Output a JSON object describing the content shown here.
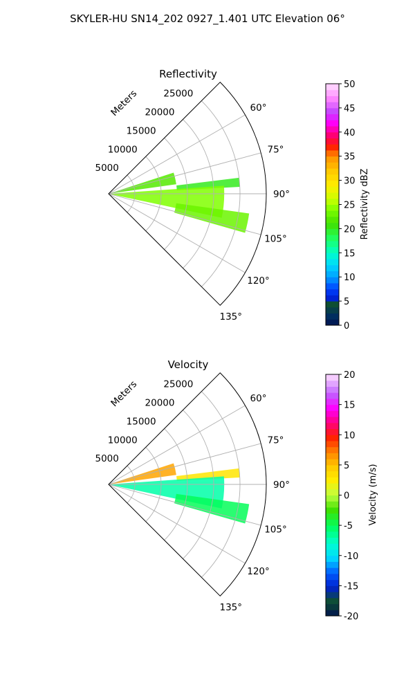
{
  "suptitle": "SKYLER-HU  SN14_202  0927_1.401 UTC Elevation 06°",
  "chart_data": [
    {
      "type": "heatmap",
      "projection": "polar-sector",
      "title": "Reflectivity",
      "r_label": "Meters",
      "theta_range_deg": [
        45,
        135
      ],
      "theta_ticks": [
        "60°",
        "75°",
        "90°",
        "105°",
        "120°",
        "135°"
      ],
      "r_range": [
        0,
        30000
      ],
      "r_ticks": [
        "5000",
        "10000",
        "15000",
        "20000",
        "25000"
      ],
      "grid": true,
      "colorbar": {
        "label": "Reflectivity dBZ",
        "range": [
          0,
          50
        ],
        "ticks": [
          "0",
          "5",
          "10",
          "15",
          "20",
          "25",
          "30",
          "35",
          "40",
          "45",
          "50"
        ]
      },
      "echo_bands": [
        {
          "theta_from": 72,
          "theta_to": 82,
          "r_from": 0,
          "r_to": 13000,
          "value": 22
        },
        {
          "theta_from": 83,
          "theta_to": 87,
          "r_from": 13000,
          "r_to": 25000,
          "value": 20
        },
        {
          "theta_from": 86,
          "theta_to": 102,
          "r_from": 0,
          "r_to": 22000,
          "value": 24
        },
        {
          "theta_from": 98,
          "theta_to": 106,
          "r_from": 13000,
          "r_to": 27000,
          "value": 23
        }
      ]
    },
    {
      "type": "heatmap",
      "projection": "polar-sector",
      "title": "Velocity",
      "r_label": "Meters",
      "theta_range_deg": [
        45,
        135
      ],
      "theta_ticks": [
        "60°",
        "75°",
        "90°",
        "105°",
        "120°",
        "135°"
      ],
      "r_range": [
        0,
        30000
      ],
      "r_ticks": [
        "5000",
        "10000",
        "15000",
        "20000",
        "25000"
      ],
      "grid": true,
      "colorbar": {
        "label": "Velocity (m/s)",
        "range": [
          -20,
          20
        ],
        "ticks": [
          "-20",
          "-15",
          "-10",
          "-5",
          "0",
          "5",
          "10",
          "15",
          "20"
        ]
      },
      "echo_bands": [
        {
          "theta_from": 72,
          "theta_to": 82,
          "r_from": 0,
          "r_to": 13000,
          "value": 6
        },
        {
          "theta_from": 83,
          "theta_to": 87,
          "r_from": 13000,
          "r_to": 25000,
          "value": 3
        },
        {
          "theta_from": 86,
          "theta_to": 102,
          "r_from": 0,
          "r_to": 22000,
          "value": -7
        },
        {
          "theta_from": 98,
          "theta_to": 106,
          "r_from": 13000,
          "r_to": 27000,
          "value": -5
        }
      ]
    }
  ]
}
